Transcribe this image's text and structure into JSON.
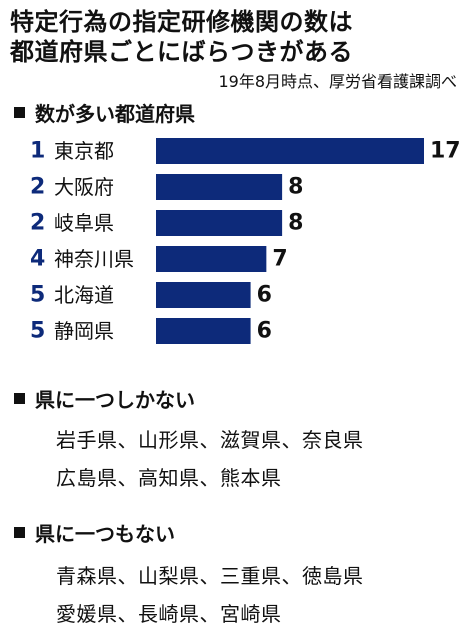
{
  "title_line1": "特定行為の指定研修機関の数は",
  "title_line2": "都道府県ごとにばらつきがある",
  "source": "19年8月時点、厚労省看護課調べ",
  "section_most": "数が多い都道府県",
  "section_one": "県に一つしかない",
  "section_none": "県に一つもない",
  "one_line1": "岩手県、山形県、滋賀県、奈良県",
  "one_line2": "広島県、高知県、熊本県",
  "none_line1": "青森県、山梨県、三重県、徳島県",
  "none_line2": "愛媛県、長崎県、宮崎県",
  "colors": {
    "bar": "#0d2a7a",
    "rank": "#0d2a7a",
    "text": "#111111"
  },
  "chart_data": {
    "type": "bar",
    "orientation": "horizontal",
    "ranks": [
      "1",
      "2",
      "2",
      "4",
      "5",
      "5"
    ],
    "categories": [
      "東京都",
      "大阪府",
      "岐阜県",
      "神奈川県",
      "北海道",
      "静岡県"
    ],
    "values": [
      17,
      8,
      8,
      7,
      6,
      6
    ],
    "xlim": [
      0,
      17
    ],
    "grid": false
  }
}
